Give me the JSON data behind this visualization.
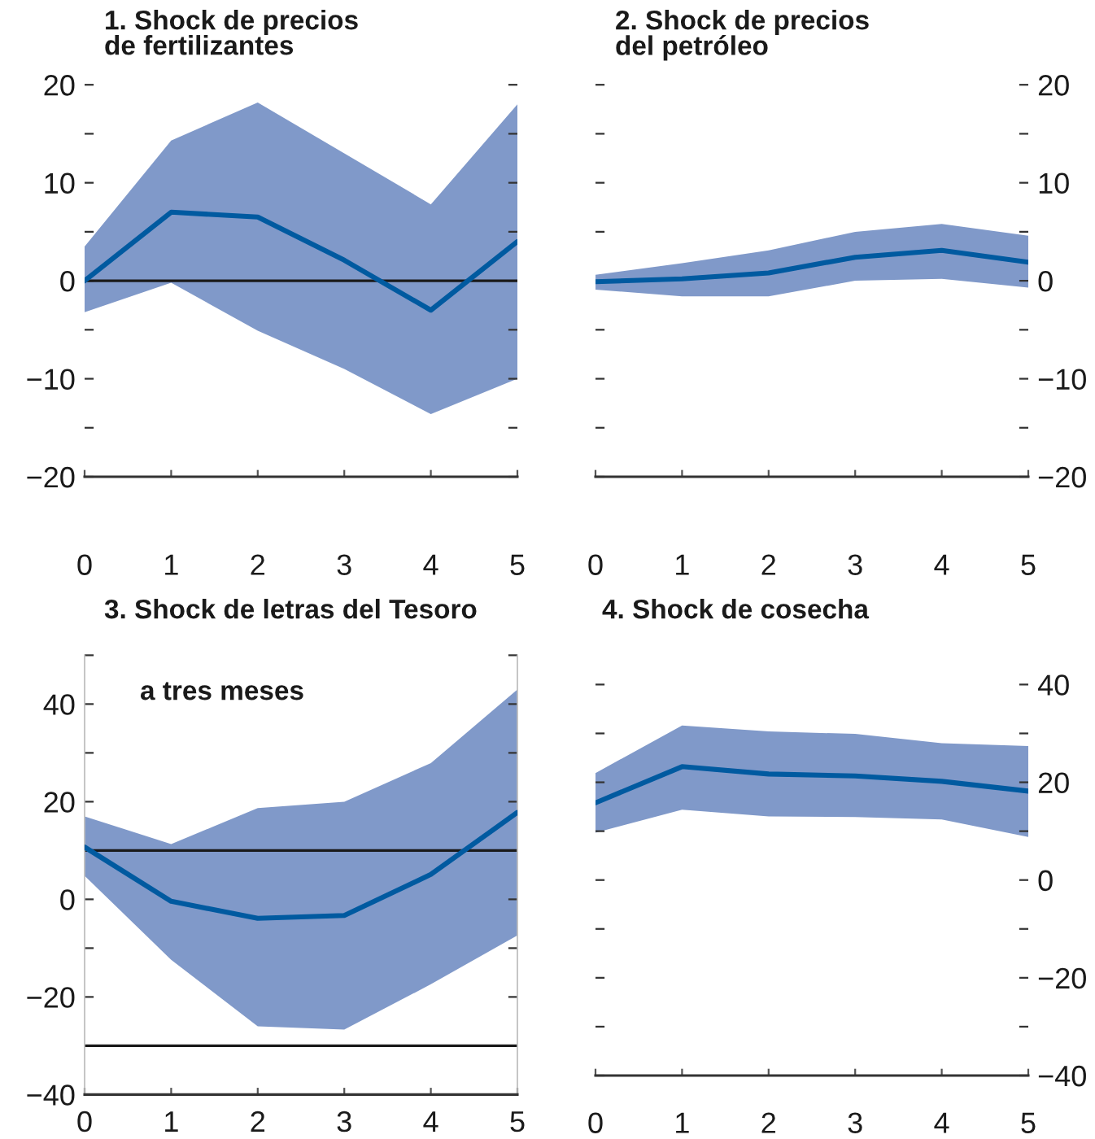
{
  "chart_data": [
    {
      "type": "line",
      "title": "1. Shock de precios\nde fertilizantes",
      "x": [
        0,
        1,
        2,
        3,
        4,
        5
      ],
      "xlim": [
        0,
        5
      ],
      "xticks": [
        0,
        1,
        2,
        3,
        4,
        5
      ],
      "ylim": [
        -20,
        20
      ],
      "yticks": [
        {
          "value": -20,
          "label": "−20"
        },
        {
          "value": -15,
          "label": null
        },
        {
          "value": -10,
          "label": "−10"
        },
        {
          "value": -5,
          "label": null
        },
        0,
        {
          "value": 5,
          "label": null
        },
        10,
        {
          "value": 15,
          "label": null
        },
        20
      ],
      "ref_lines": [
        {
          "axis": "y",
          "value": 0,
          "color": "#1a1a1a"
        }
      ],
      "series": [
        {
          "color": "#005aa0",
          "values": [
            0,
            7.0,
            6.5,
            2.1,
            -3.0,
            4.0
          ],
          "lower": [
            -3.2,
            -0.2,
            -5.1,
            -9.0,
            -13.6,
            -10.0
          ],
          "upper": [
            3.5,
            14.3,
            18.2,
            13.0,
            7.8,
            18.0
          ]
        }
      ]
    },
    {
      "type": "line",
      "title": "2. Shock de precios\ndel petróleo",
      "x": [
        0,
        1,
        2,
        3,
        4,
        5
      ],
      "xlim": [
        0,
        5
      ],
      "xticks": [
        0,
        1,
        2,
        3,
        4,
        5
      ],
      "y2lim": [
        -20,
        20
      ],
      "y2ticks": [
        {
          "value": -20,
          "label": "−20"
        },
        {
          "value": -15,
          "label": null
        },
        {
          "value": -10,
          "label": "−10"
        },
        {
          "value": -5,
          "label": null
        },
        0,
        {
          "value": 5,
          "label": null
        },
        10,
        {
          "value": 15,
          "label": null
        },
        20
      ],
      "series": [
        {
          "axis": "y2",
          "color": "#005aa0",
          "values": [
            -0.1,
            0.2,
            0.8,
            2.4,
            3.1,
            1.9
          ],
          "lower": [
            -0.9,
            -1.6,
            -1.6,
            0,
            0.2,
            -0.7
          ],
          "upper": [
            0.6,
            1.8,
            3.1,
            5.0,
            5.8,
            4.6
          ]
        }
      ]
    },
    {
      "type": "line",
      "title": "3. Shock de letras del Tesoro",
      "annotations": [
        "a tres meses"
      ],
      "x": [
        0,
        1,
        2,
        3,
        4,
        5
      ],
      "xlim": [
        0,
        5
      ],
      "xticks": [
        0,
        1,
        2,
        3,
        4,
        5
      ],
      "ylim": [
        -40,
        50
      ],
      "yticks": [
        {
          "value": -40,
          "label": "−40"
        },
        {
          "value": -30,
          "label": null
        },
        {
          "value": -20,
          "label": "−20"
        },
        {
          "value": -10,
          "label": null
        },
        0,
        {
          "value": 10,
          "label": null
        },
        20,
        {
          "value": 30,
          "label": null
        },
        40,
        {
          "value": 50,
          "label": null
        }
      ],
      "ref_lines": [
        {
          "axis": "y",
          "value": 10,
          "color": "#1a1a1a"
        },
        {
          "axis": "y",
          "value": -30,
          "color": "#1a1a1a"
        }
      ],
      "series": [
        {
          "color": "#005aa0",
          "values": [
            10.7,
            -0.4,
            -3.9,
            -3.3,
            5.1,
            17.8
          ],
          "lower": [
            4.8,
            -12.4,
            -26,
            -26.7,
            -17.4,
            -7.4
          ],
          "upper": [
            17,
            11.3,
            18.7,
            20,
            27.9,
            43
          ]
        }
      ]
    },
    {
      "type": "line",
      "title": "4. Shock de cosecha",
      "x": [
        0,
        1,
        2,
        3,
        4,
        5
      ],
      "xlim": [
        0,
        5
      ],
      "xticks": [
        0,
        1,
        2,
        3,
        4,
        5
      ],
      "y2lim": [
        -40,
        40
      ],
      "y2ticks": [
        {
          "value": -40,
          "label": "−40"
        },
        {
          "value": -30,
          "label": null
        },
        {
          "value": -20,
          "label": "−20"
        },
        {
          "value": -10,
          "label": null
        },
        0,
        {
          "value": 10,
          "label": null
        },
        20,
        {
          "value": 30,
          "label": null
        },
        40
      ],
      "series": [
        {
          "axis": "y2",
          "color": "#005aa0",
          "values": [
            15.8,
            23.2,
            21.7,
            21.3,
            20.2,
            18.2
          ],
          "lower": [
            9.7,
            14.4,
            13,
            12.9,
            12.4,
            8.8
          ],
          "upper": [
            21.9,
            31.6,
            30.4,
            29.9,
            28,
            27.4
          ]
        }
      ]
    }
  ]
}
